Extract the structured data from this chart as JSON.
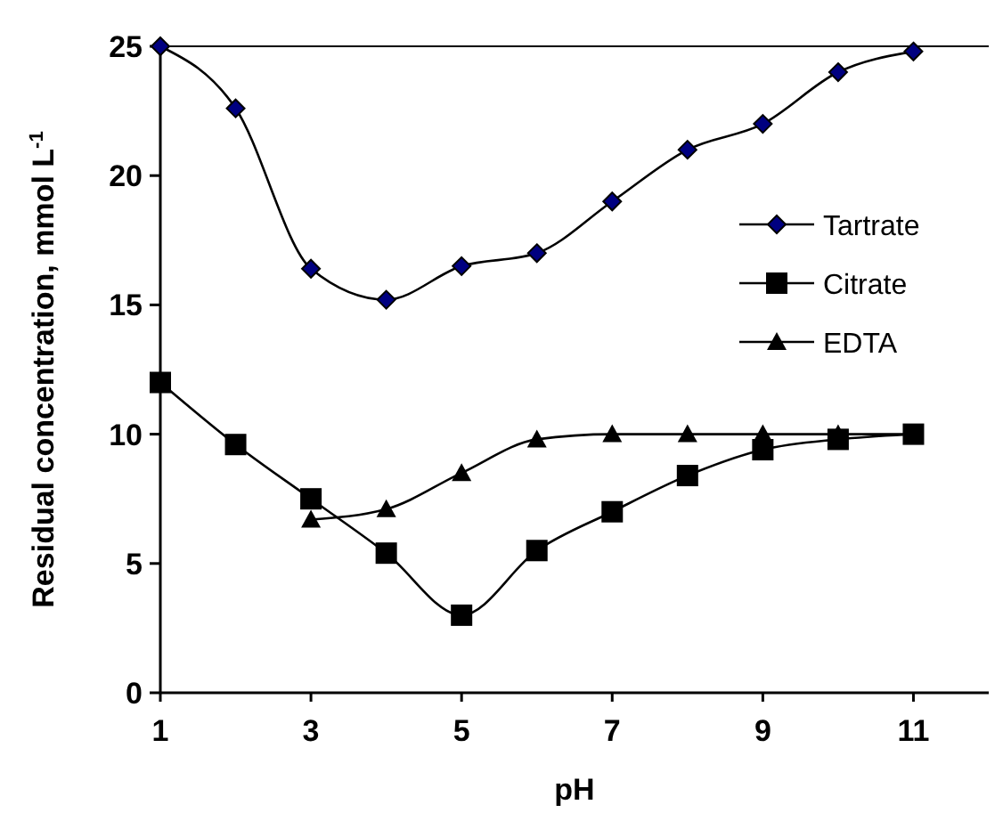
{
  "chart_data": {
    "type": "line",
    "xlabel": "pH",
    "ylabel": "Residual concentration, mmol L$^{-1}$",
    "xlim": [
      1,
      12
    ],
    "xticks": [
      1,
      3,
      5,
      7,
      9,
      11
    ],
    "ylim": [
      0,
      25
    ],
    "yticks": [
      0,
      5,
      10,
      15,
      20,
      25
    ],
    "grid": false,
    "legend": "right",
    "line_style": "solid",
    "series": [
      {
        "name": "Tartrate",
        "color": "#000080",
        "marker": "diamond",
        "x": [
          1,
          2,
          3,
          4,
          5,
          6,
          7,
          8,
          9,
          10,
          11
        ],
        "values": [
          25,
          22.6,
          16.4,
          15.2,
          16.5,
          17.0,
          19.0,
          21.0,
          22.0,
          24.0,
          24.8
        ]
      },
      {
        "name": "Citrate",
        "color": "#000000",
        "marker": "square",
        "x": [
          1,
          2,
          3,
          4,
          5,
          6,
          7,
          8,
          9,
          10,
          11
        ],
        "values": [
          12.0,
          9.6,
          7.5,
          5.4,
          3.0,
          5.5,
          7.0,
          8.4,
          9.4,
          9.8,
          10.0
        ]
      },
      {
        "name": "EDTA",
        "color": "#000000",
        "marker": "triangle",
        "x": [
          3,
          4,
          5,
          6,
          7,
          8,
          9,
          10,
          11
        ],
        "values": [
          6.7,
          7.1,
          8.5,
          9.8,
          10,
          10,
          10,
          10,
          10
        ]
      }
    ]
  }
}
